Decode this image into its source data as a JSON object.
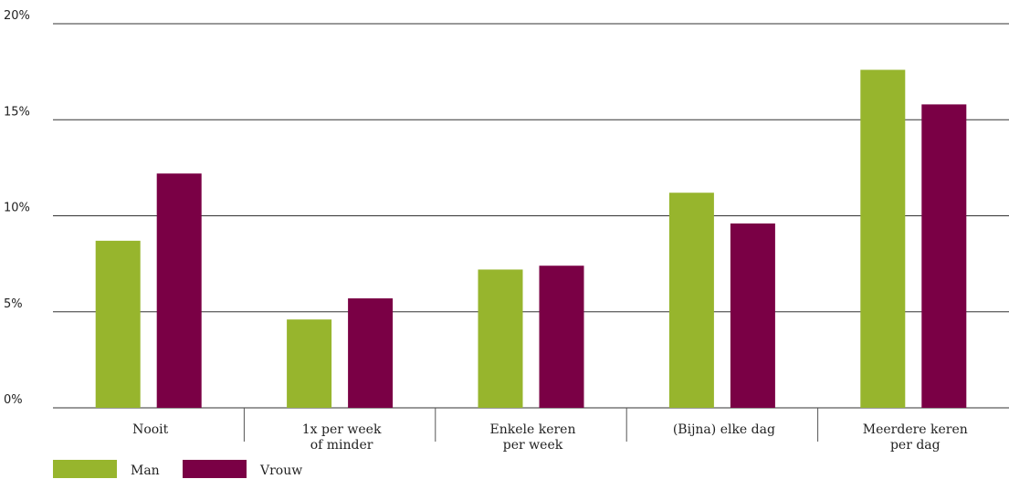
{
  "chart_data": {
    "type": "bar",
    "categories": [
      [
        "Nooit"
      ],
      [
        "1x per week",
        "of minder"
      ],
      [
        "Enkele keren",
        "per week"
      ],
      [
        "(Bijna) elke dag"
      ],
      [
        "Meerdere keren",
        "per dag"
      ]
    ],
    "series": [
      {
        "name": "Man",
        "color": "#97b52d",
        "values": [
          8.7,
          4.6,
          7.2,
          11.2,
          17.6
        ]
      },
      {
        "name": "Vrouw",
        "color": "#7a0045",
        "values": [
          12.2,
          5.7,
          7.4,
          9.6,
          15.8
        ]
      }
    ],
    "yticks": [
      "0%",
      "5%",
      "10%",
      "15%",
      "20%"
    ],
    "ylim": [
      0,
      20
    ],
    "grid": true,
    "legend_position": "bottom-left"
  }
}
